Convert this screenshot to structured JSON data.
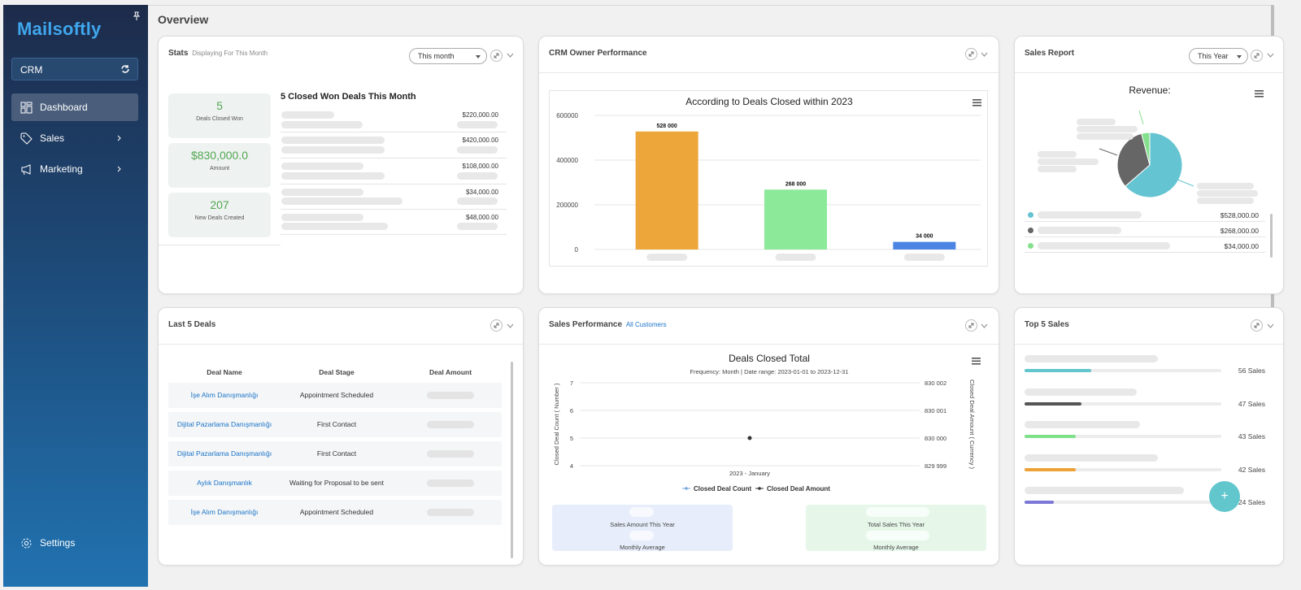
{
  "sidebar": {
    "logo": "Mailsoftly",
    "workspace": "CRM",
    "nav": [
      {
        "label": "Dashboard"
      },
      {
        "label": "Sales"
      },
      {
        "label": "Marketing"
      }
    ],
    "settings_label": "Settings"
  },
  "page_title": "Overview",
  "stats": {
    "title": "Stats",
    "subtitle": "Displaying For This Month",
    "filter": "This month",
    "boxes": [
      {
        "value": "5",
        "label": "Deals Closed Won"
      },
      {
        "value": "$830,000.0",
        "label": "Amount"
      },
      {
        "value": "207",
        "label": "New Deals Created"
      }
    ],
    "list_title": "5 Closed Won Deals This Month",
    "amounts": [
      "$220,000.00",
      "$420,000.00",
      "$108,000.00",
      "$34,000.00",
      "$48,000.00"
    ]
  },
  "owner_perf": {
    "title": "CRM Owner Performance",
    "chart_title": "According to Deals Closed within 2023"
  },
  "sales_report": {
    "title": "Sales Report",
    "filter": "This Year",
    "chart_title": "Revenue:",
    "legend": [
      "$528,000.00",
      "$268,000.00",
      "$34,000.00"
    ]
  },
  "last_deals": {
    "title": "Last 5 Deals",
    "columns": [
      "Deal Name",
      "Deal Stage",
      "Deal Amount"
    ],
    "rows": [
      {
        "name": "İşe Alım Danışmanlığı",
        "stage": "Appointment Scheduled"
      },
      {
        "name": "Dijital Pazarlama Danışmanlığı",
        "stage": "First Contact"
      },
      {
        "name": "Dijital Pazarlama Danışmanlığı",
        "stage": "First Contact"
      },
      {
        "name": "Aylık Danışmanlık",
        "stage": "Waiting for Proposal to be sent"
      },
      {
        "name": "İşe Alım Danışmanlığı",
        "stage": "Appointment Scheduled"
      }
    ]
  },
  "sales_perf": {
    "title": "Sales Performance",
    "link": "All Customers",
    "chart_title": "Deals Closed Total",
    "chart_subtitle": "Frequency: Month | Date range: 2023-01-01 to 2023-12-31",
    "box_left": {
      "label1": "Sales Amount This Year",
      "label2": "Monthly Average"
    },
    "box_right": {
      "label1": "Total Sales This Year",
      "label2": "Monthly Average"
    }
  },
  "top_sales": {
    "title": "Top 5 Sales",
    "items": [
      {
        "label": "56 Sales",
        "fraction": 0.34,
        "color": "#62c6cd"
      },
      {
        "label": "47 Sales",
        "fraction": 0.29,
        "color": "#555555"
      },
      {
        "label": "43 Sales",
        "fraction": 0.26,
        "color": "#7fe08a"
      },
      {
        "label": "42 Sales",
        "fraction": 0.26,
        "color": "#eda236"
      },
      {
        "label": "24 Sales",
        "fraction": 0.15,
        "color": "#7b78d6"
      }
    ]
  },
  "fab_label": "+",
  "chart_data": [
    {
      "type": "bar",
      "title": "According to Deals Closed within 2023",
      "categories": [
        "",
        "",
        ""
      ],
      "values": [
        528000,
        268000,
        34000
      ],
      "data_labels": [
        "528 000",
        "268 000",
        "34 000"
      ],
      "colors": [
        "#eda63a",
        "#8be999",
        "#4b84e3"
      ],
      "yticks": [
        "600000",
        "400000",
        "200000",
        "0"
      ],
      "ylim": [
        0,
        600000
      ]
    },
    {
      "type": "pie",
      "title": "Revenue:",
      "values": [
        528000,
        268000,
        34000
      ],
      "colors": [
        "#65c4d1",
        "#666666",
        "#85e08d"
      ]
    },
    {
      "type": "line",
      "title": "Deals Closed Total",
      "subtitle": "Frequency: Month | Date range: 2023-01-01 to 2023-12-31",
      "x": [
        "2023 - January"
      ],
      "y_left_label": "Closed Deal Count ( Number )",
      "y_right_label": "Closed Deal Amount ( Currency )",
      "y_left_ticks": [
        "7",
        "6",
        "5",
        "4"
      ],
      "y_right_ticks": [
        "830 002",
        "830 001",
        "830 000",
        "829 999"
      ],
      "series": [
        {
          "name": "Closed Deal Count",
          "values": [
            5
          ]
        },
        {
          "name": "Closed Deal Amount",
          "values": [
            830000
          ]
        }
      ]
    }
  ]
}
